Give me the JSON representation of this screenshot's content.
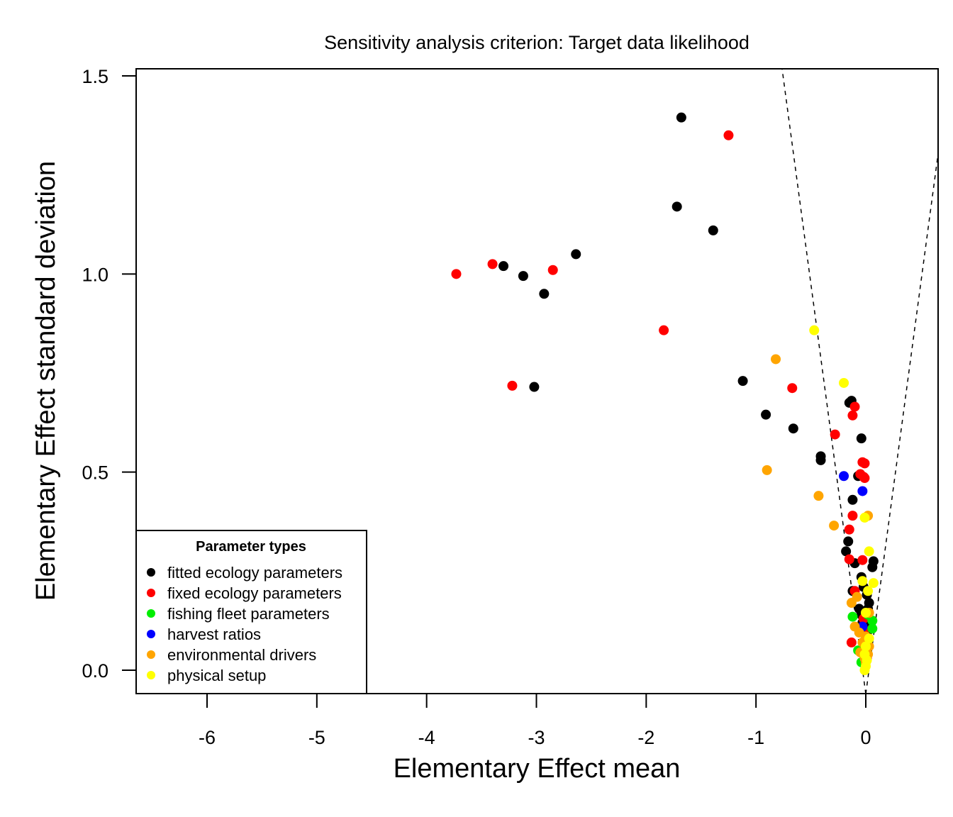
{
  "chart_data": {
    "type": "scatter",
    "title": "Sensitivity analysis criterion: Target data likelihood",
    "xlabel": "Elementary Effect mean",
    "ylabel": "Elementary Effect standard deviation",
    "xlim": [
      -6.65,
      0.66
    ],
    "ylim": [
      -0.06,
      1.52
    ],
    "xticks": [
      -6,
      -5,
      -4,
      -3,
      -2,
      -1,
      0
    ],
    "xtick_labels": [
      "-6",
      "-5",
      "-4",
      "-3",
      "-2",
      "-1",
      "0"
    ],
    "yticks": [
      0.0,
      0.5,
      1.0,
      1.5
    ],
    "ytick_labels": [
      "0.0",
      "0.5",
      "1.0",
      "1.5"
    ],
    "grid": false,
    "reference_lines": {
      "style": "dashed",
      "description": "mean = ±0.5 × standard deviation",
      "slope": 0.5
    },
    "legend": {
      "title": "Parameter types",
      "placement": "bottom-left",
      "entries": [
        {
          "key": "fitted",
          "label": "fitted ecology parameters",
          "color": "#000000"
        },
        {
          "key": "fixed",
          "label": "fixed ecology parameters",
          "color": "#ff0000"
        },
        {
          "key": "fleet",
          "label": "fishing fleet parameters",
          "color": "#00ee00"
        },
        {
          "key": "harvest",
          "label": "harvest ratios",
          "color": "#0000ff"
        },
        {
          "key": "env",
          "label": "environmental drivers",
          "color": "#ffa500"
        },
        {
          "key": "physical",
          "label": "physical setup",
          "color": "#ffff00"
        }
      ]
    },
    "series": [
      {
        "name": "fitted ecology parameters",
        "key": "fitted",
        "points": [
          [
            -1.68,
            1.395
          ],
          [
            -1.72,
            1.17
          ],
          [
            -1.39,
            1.11
          ],
          [
            -2.64,
            1.05
          ],
          [
            -3.3,
            1.02
          ],
          [
            -3.12,
            0.995
          ],
          [
            -2.93,
            0.95
          ],
          [
            -3.02,
            0.715
          ],
          [
            -1.12,
            0.73
          ],
          [
            -0.91,
            0.645
          ],
          [
            -0.66,
            0.61
          ],
          [
            -0.41,
            0.54
          ],
          [
            -0.41,
            0.53
          ],
          [
            -0.13,
            0.68
          ],
          [
            -0.15,
            0.675
          ],
          [
            -0.04,
            0.585
          ],
          [
            -0.07,
            0.49
          ],
          [
            -0.12,
            0.43
          ],
          [
            -0.16,
            0.325
          ],
          [
            -0.18,
            0.3
          ],
          [
            -0.1,
            0.27
          ],
          [
            0.07,
            0.275
          ],
          [
            0.06,
            0.26
          ],
          [
            -0.04,
            0.235
          ],
          [
            -0.12,
            0.2
          ],
          [
            -0.02,
            0.21
          ],
          [
            0.01,
            0.19
          ],
          [
            0.03,
            0.17
          ],
          [
            -0.06,
            0.155
          ],
          [
            0.02,
            0.155
          ],
          [
            -0.04,
            0.14
          ],
          [
            0.0,
            0.13
          ],
          [
            -0.03,
            0.12
          ],
          [
            0.02,
            0.115
          ],
          [
            -0.02,
            0.1
          ],
          [
            0.01,
            0.09
          ],
          [
            -0.01,
            0.06
          ]
        ]
      },
      {
        "name": "fixed ecology parameters",
        "key": "fixed",
        "points": [
          [
            -1.25,
            1.35
          ],
          [
            -3.73,
            1.0
          ],
          [
            -3.4,
            1.025
          ],
          [
            -2.85,
            1.01
          ],
          [
            -1.84,
            0.858
          ],
          [
            -3.22,
            0.718
          ],
          [
            -0.67,
            0.712
          ],
          [
            -0.1,
            0.665
          ],
          [
            -0.12,
            0.643
          ],
          [
            -0.28,
            0.595
          ],
          [
            -0.03,
            0.525
          ],
          [
            -0.01,
            0.522
          ],
          [
            -0.05,
            0.495
          ],
          [
            -0.02,
            0.488
          ],
          [
            -0.01,
            0.485
          ],
          [
            -0.12,
            0.39
          ],
          [
            -0.15,
            0.355
          ],
          [
            -0.15,
            0.28
          ],
          [
            -0.03,
            0.278
          ],
          [
            -0.1,
            0.2
          ],
          [
            -0.02,
            0.13
          ],
          [
            -0.13,
            0.07
          ],
          [
            -0.01,
            0.1
          ],
          [
            0.01,
            0.03
          ]
        ]
      },
      {
        "name": "fishing fleet parameters",
        "key": "fleet",
        "points": [
          [
            -0.12,
            0.135
          ],
          [
            0.02,
            0.14
          ],
          [
            0.06,
            0.125
          ],
          [
            0.06,
            0.105
          ],
          [
            -0.07,
            0.05
          ],
          [
            0.01,
            0.045
          ],
          [
            -0.04,
            0.02
          ]
        ]
      },
      {
        "name": "harvest ratios",
        "key": "harvest",
        "points": [
          [
            -0.2,
            0.49
          ],
          [
            -0.03,
            0.452
          ],
          [
            -0.03,
            0.11
          ]
        ]
      },
      {
        "name": "environmental drivers",
        "key": "env",
        "points": [
          [
            -0.82,
            0.785
          ],
          [
            -0.9,
            0.505
          ],
          [
            -0.43,
            0.44
          ],
          [
            -0.29,
            0.365
          ],
          [
            0.02,
            0.39
          ],
          [
            -0.13,
            0.17
          ],
          [
            -0.08,
            0.185
          ],
          [
            0.03,
            0.145
          ],
          [
            -0.1,
            0.11
          ],
          [
            -0.06,
            0.095
          ],
          [
            0.0,
            0.085
          ],
          [
            -0.03,
            0.07
          ],
          [
            0.03,
            0.06
          ],
          [
            -0.05,
            0.045
          ],
          [
            0.02,
            0.04
          ],
          [
            -0.01,
            0.03
          ],
          [
            0.0,
            0.02
          ]
        ]
      },
      {
        "name": "physical setup",
        "key": "physical",
        "points": [
          [
            -0.47,
            0.858
          ],
          [
            -0.2,
            0.725
          ],
          [
            -0.01,
            0.385
          ],
          [
            0.03,
            0.3
          ],
          [
            0.07,
            0.22
          ],
          [
            -0.03,
            0.225
          ],
          [
            0.02,
            0.2
          ],
          [
            0.0,
            0.145
          ],
          [
            0.03,
            0.08
          ],
          [
            0.0,
            0.06
          ],
          [
            -0.01,
            0.04
          ],
          [
            0.01,
            0.025
          ],
          [
            0.0,
            0.01
          ],
          [
            -0.01,
            0.0
          ]
        ]
      }
    ]
  }
}
